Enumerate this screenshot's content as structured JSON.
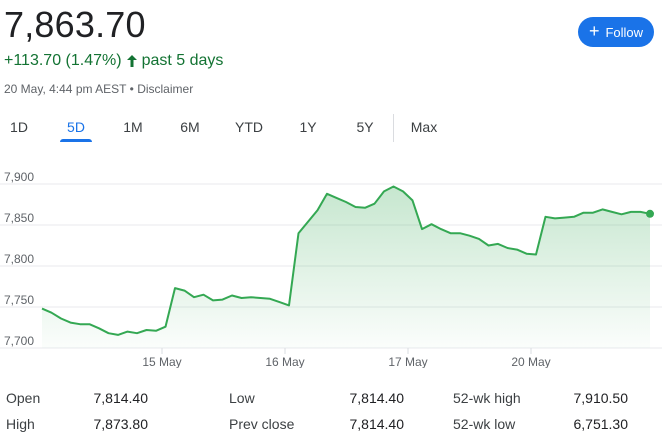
{
  "quote": {
    "price": "7,863.70",
    "change": "+113.70 (1.47%)",
    "period": "past 5 days",
    "timestamp": "20 May, 4:44 pm AEST",
    "separator": "•",
    "disclaimer": "Disclaimer",
    "follow_label": "Follow",
    "accent_color": "#1a73e8",
    "up_color": "#137333",
    "line_color": "#34a853"
  },
  "tabs": [
    {
      "label": "1D",
      "active": false
    },
    {
      "label": "5D",
      "active": true
    },
    {
      "label": "1M",
      "active": false
    },
    {
      "label": "6M",
      "active": false
    },
    {
      "label": "YTD",
      "active": false
    },
    {
      "label": "1Y",
      "active": false
    },
    {
      "label": "5Y",
      "active": false
    },
    {
      "label": "Max",
      "active": false
    }
  ],
  "chart_data": {
    "type": "area",
    "y_ticks": [
      "7,900",
      "7,850",
      "7,800",
      "7,750",
      "7,700"
    ],
    "y_tick_values": [
      7900,
      7850,
      7800,
      7750,
      7700
    ],
    "x_labels": [
      "15 May",
      "16 May",
      "17 May",
      "20 May"
    ],
    "ylim": [
      7700,
      7925
    ],
    "grid": true,
    "day_boundaries": [
      0,
      10.3,
      20.6,
      30.9,
      41.2,
      53.3
    ],
    "values": [
      7748,
      7743,
      7736,
      7731,
      7729,
      7729,
      7724,
      7718,
      7716,
      7720,
      7718,
      7722,
      7721,
      7726,
      7773,
      7770,
      7762,
      7765,
      7758,
      7759,
      7764,
      7761,
      7762,
      7761,
      7760,
      7756,
      7752,
      7840,
      7854,
      7868,
      7888,
      7883,
      7878,
      7872,
      7871,
      7876,
      7891,
      7897,
      7891,
      7880,
      7845,
      7851,
      7845,
      7840,
      7840,
      7837,
      7833,
      7825,
      7827,
      7822,
      7820,
      7815,
      7814,
      7860,
      7858,
      7859,
      7860,
      7865,
      7865,
      7869,
      7866,
      7863,
      7866,
      7866,
      7863.7
    ]
  },
  "stats": {
    "open_label": "Open",
    "open_value": "7,814.40",
    "high_label": "High",
    "high_value": "7,873.80",
    "low_label": "Low",
    "low_value": "7,814.40",
    "prev_close_label": "Prev close",
    "prev_close_value": "7,814.40",
    "wk52_high_label": "52-wk high",
    "wk52_high_value": "7,910.50",
    "wk52_low_label": "52-wk low",
    "wk52_low_value": "6,751.30"
  }
}
